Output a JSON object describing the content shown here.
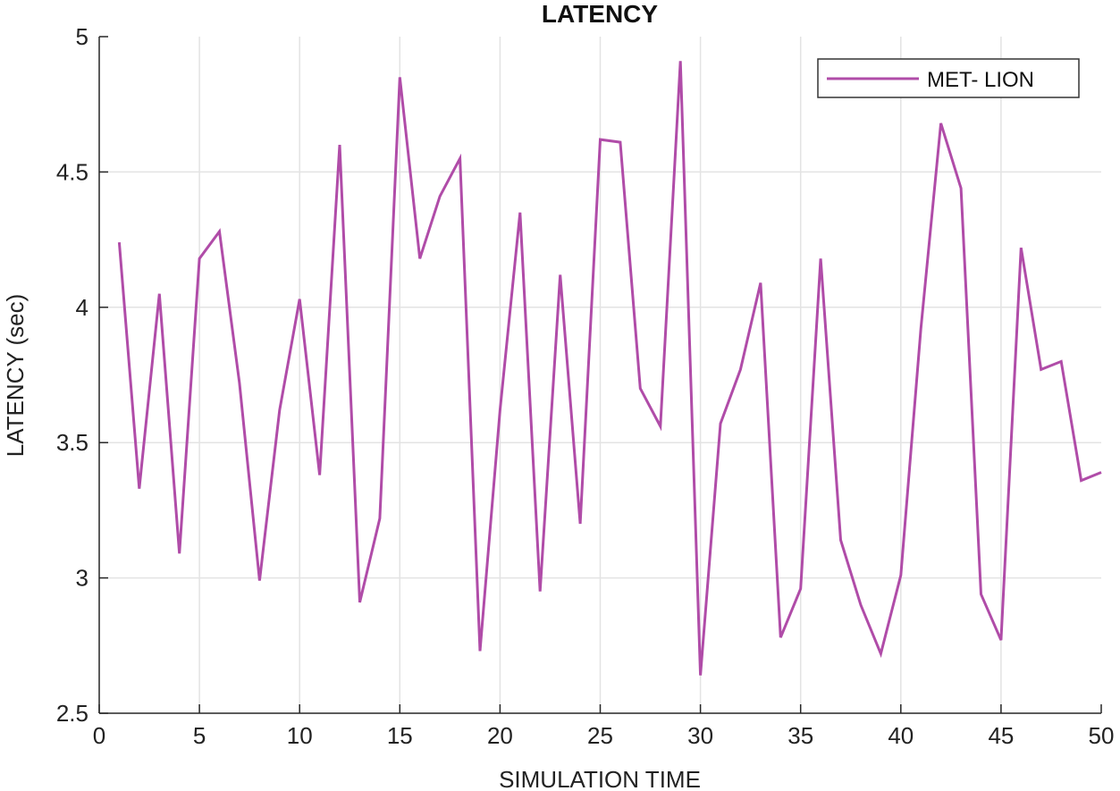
{
  "chart_data": {
    "type": "line",
    "title": "LATENCY",
    "xlabel": "SIMULATION TIME",
    "ylabel": "LATENCY (sec)",
    "xlim": [
      0,
      50
    ],
    "ylim": [
      2.5,
      5
    ],
    "xticks": [
      0,
      5,
      10,
      15,
      20,
      25,
      30,
      35,
      40,
      45,
      50
    ],
    "yticks": [
      2.5,
      3,
      3.5,
      4,
      4.5,
      5
    ],
    "ytick_labels": [
      "2.5",
      "3",
      "3.5",
      "4",
      "4.5",
      "5"
    ],
    "grid": true,
    "legend_position": "top-right",
    "series": [
      {
        "name": "MET- LION",
        "color": "#b04ca8",
        "x": [
          1,
          2,
          3,
          4,
          5,
          6,
          7,
          8,
          9,
          10,
          11,
          12,
          13,
          14,
          15,
          16,
          17,
          18,
          19,
          20,
          21,
          22,
          23,
          24,
          25,
          26,
          27,
          28,
          29,
          30,
          31,
          32,
          33,
          34,
          35,
          36,
          37,
          38,
          39,
          40,
          41,
          42,
          43,
          44,
          45,
          46,
          47,
          48,
          49,
          50
        ],
        "values": [
          4.24,
          3.33,
          4.05,
          3.09,
          4.18,
          4.28,
          3.72,
          2.99,
          3.62,
          4.03,
          3.38,
          4.6,
          2.91,
          3.22,
          4.85,
          4.18,
          4.41,
          4.55,
          2.73,
          3.62,
          4.35,
          2.95,
          4.12,
          3.2,
          4.62,
          4.61,
          3.7,
          3.56,
          4.91,
          2.64,
          3.57,
          3.77,
          4.09,
          2.78,
          2.96,
          4.18,
          3.14,
          2.9,
          2.72,
          3.01,
          3.92,
          4.68,
          4.44,
          2.94,
          2.77,
          4.22,
          3.77,
          3.8,
          3.36,
          3.39
        ]
      }
    ]
  }
}
